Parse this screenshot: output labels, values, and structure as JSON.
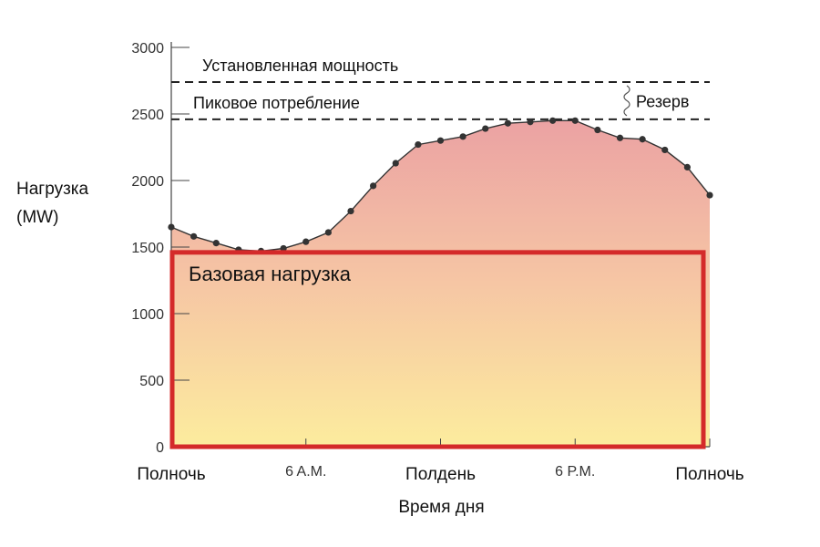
{
  "chart_data": {
    "type": "area",
    "title": "",
    "xlabel": "Время дня",
    "ylabel": [
      "Нагрузка",
      "(MW)"
    ],
    "ylim": [
      0,
      3000
    ],
    "yticks": [
      0,
      500,
      1000,
      1500,
      2000,
      2500,
      3000
    ],
    "xlim": [
      0,
      24
    ],
    "xticks": [
      {
        "x": 0,
        "label": "Полночь",
        "style": "big"
      },
      {
        "x": 6,
        "label": "6 A.M.",
        "style": "small"
      },
      {
        "x": 12,
        "label": "Полдень",
        "style": "big"
      },
      {
        "x": 18,
        "label": "6 P.M.",
        "style": "small"
      },
      {
        "x": 24,
        "label": "Полночь",
        "style": "big"
      }
    ],
    "series": [
      {
        "name": "Нагрузка",
        "x": [
          0,
          1,
          2,
          3,
          4,
          5,
          6,
          7,
          8,
          9,
          10,
          11,
          12,
          13,
          14,
          15,
          16,
          17,
          18,
          19,
          20,
          21,
          22,
          23,
          24
        ],
        "values": [
          1650,
          1580,
          1530,
          1480,
          1470,
          1490,
          1540,
          1610,
          1770,
          1960,
          2130,
          2270,
          2300,
          2330,
          2390,
          2430,
          2440,
          2450,
          2450,
          2380,
          2320,
          2310,
          2230,
          2100,
          1890
        ]
      }
    ],
    "reference_lines": [
      {
        "name": "Установленная мощность",
        "value": 2740
      },
      {
        "name": "Пиковое потребление",
        "value": 2460
      }
    ],
    "reserve_label": "Резерв",
    "base_load": {
      "label": "Базовая нагрузка",
      "value": 1460
    }
  }
}
